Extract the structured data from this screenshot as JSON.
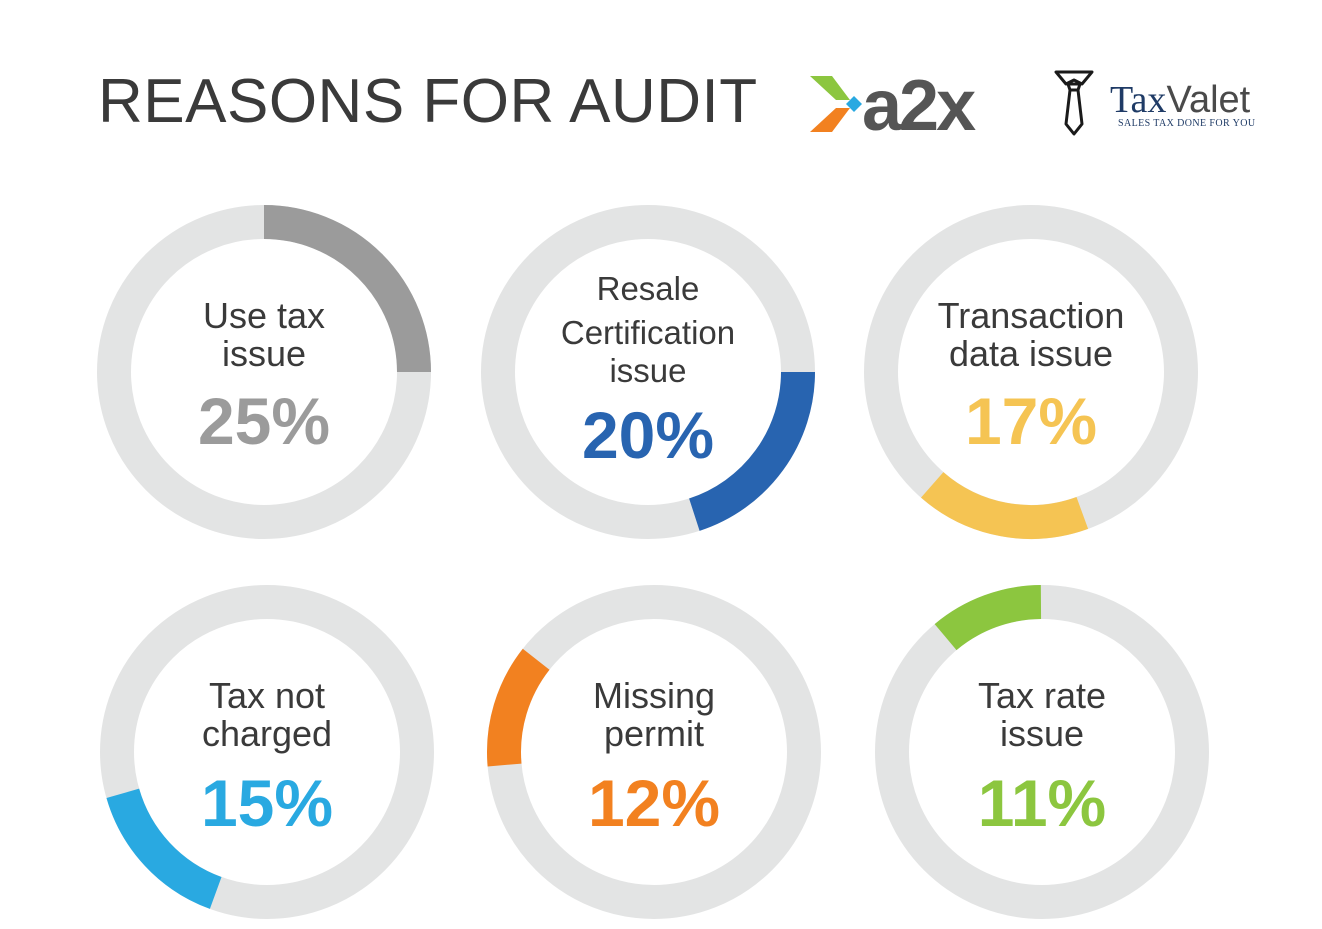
{
  "header": {
    "title": "REASONS FOR AUDIT",
    "logo_a2x": "a2x",
    "logo_taxvalet_brand_tax": "Tax",
    "logo_taxvalet_brand_valet": "Valet",
    "logo_taxvalet_tagline": "SALES TAX DONE FOR YOU"
  },
  "colors": {
    "track": "#e3e4e4",
    "gray": "#9b9b9b",
    "blue": "#2864b0",
    "yellow": "#f5c453",
    "cyan": "#29a9e1",
    "orange": "#f28120",
    "green": "#8cc63f",
    "text": "#3a3a3a",
    "taxvalet_navy": "#1f3b66"
  },
  "chart_data": [
    {
      "type": "pie",
      "title_lines": [
        "Use tax",
        "issue"
      ],
      "value": 25,
      "label": "25%",
      "color": "#9b9b9b"
    },
    {
      "type": "pie",
      "title_lines": [
        "Resale",
        "Certification",
        "issue"
      ],
      "value": 20,
      "label": "20%",
      "color": "#2864b0"
    },
    {
      "type": "pie",
      "title_lines": [
        "Transaction",
        "data issue"
      ],
      "value": 17,
      "label": "17%",
      "color": "#f5c453"
    },
    {
      "type": "pie",
      "title_lines": [
        "Tax not",
        "charged"
      ],
      "value": 15,
      "label": "15%",
      "color": "#29a9e1"
    },
    {
      "type": "pie",
      "title_lines": [
        "Missing",
        "permit"
      ],
      "value": 12,
      "label": "12%",
      "color": "#f28120"
    },
    {
      "type": "pie",
      "title_lines": [
        "Tax rate",
        "issue"
      ],
      "value": 11,
      "label": "11%",
      "color": "#8cc63f"
    }
  ]
}
